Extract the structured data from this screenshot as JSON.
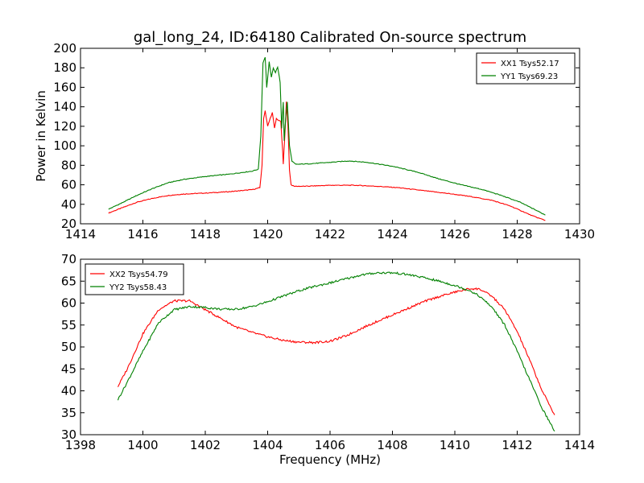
{
  "figure_title": "gal_long_24, ID:64180 Calibrated On-source spectrum",
  "chart_data": [
    {
      "type": "line",
      "title": "gal_long_24, ID:64180 Calibrated On-source spectrum",
      "xlabel": "",
      "ylabel": "Power in Kelvin",
      "xlim": [
        1414,
        1430
      ],
      "ylim": [
        20,
        200
      ],
      "xticks": [
        1414,
        1416,
        1418,
        1420,
        1422,
        1424,
        1426,
        1428,
        1430
      ],
      "yticks": [
        20,
        40,
        60,
        80,
        100,
        120,
        140,
        160,
        180,
        200
      ],
      "grid": false,
      "legend": "top-right",
      "series": [
        {
          "name": "XX1 Tsys52.17",
          "color": "#ff0000",
          "x": [
            1414.9,
            1415.3,
            1415.8,
            1416.3,
            1416.8,
            1417.3,
            1418.0,
            1418.8,
            1419.5,
            1419.75,
            1419.82,
            1419.87,
            1419.92,
            1420.0,
            1420.08,
            1420.15,
            1420.22,
            1420.28,
            1420.35,
            1420.42,
            1420.48,
            1420.5,
            1420.55,
            1420.6,
            1420.65,
            1420.7,
            1420.75,
            1420.85,
            1421.2,
            1422.0,
            1422.8,
            1423.5,
            1424.2,
            1425.0,
            1425.8,
            1426.5,
            1427.2,
            1427.8,
            1428.5,
            1428.9
          ],
          "y": [
            31,
            36,
            42,
            46,
            49,
            50.5,
            51.5,
            53,
            55,
            57,
            80,
            128,
            136,
            120,
            128,
            134,
            118,
            128,
            126,
            125,
            95,
            81,
            110,
            145,
            120,
            75,
            60,
            58.5,
            58.5,
            59.5,
            59.5,
            58.5,
            57,
            54,
            51,
            48,
            44,
            38,
            28,
            23.5
          ]
        },
        {
          "name": "YY1 Tsys69.23",
          "color": "#008000",
          "x": [
            1414.9,
            1415.3,
            1415.8,
            1416.3,
            1416.8,
            1417.3,
            1418.0,
            1418.8,
            1419.5,
            1419.7,
            1419.78,
            1419.85,
            1419.92,
            1419.97,
            1420.05,
            1420.12,
            1420.18,
            1420.25,
            1420.32,
            1420.4,
            1420.45,
            1420.5,
            1420.53,
            1420.58,
            1420.63,
            1420.7,
            1420.78,
            1420.9,
            1421.3,
            1422.0,
            1422.6,
            1423.2,
            1424.0,
            1424.8,
            1425.5,
            1426.2,
            1426.9,
            1427.5,
            1428.1,
            1428.6,
            1428.9
          ],
          "y": [
            35,
            41,
            49,
            56,
            62,
            65.5,
            68.5,
            71,
            74,
            76,
            110,
            185,
            191,
            160,
            186,
            170,
            180,
            175,
            181,
            165,
            118,
            145,
            105,
            130,
            145,
            100,
            84,
            81,
            81.5,
            83,
            84.5,
            83,
            79,
            73,
            66,
            60,
            55,
            49,
            42,
            34,
            29
          ]
        }
      ]
    },
    {
      "type": "line",
      "title": "",
      "xlabel": "Frequency (MHz)",
      "ylabel": "",
      "xlim": [
        1398,
        1414
      ],
      "ylim": [
        30,
        70
      ],
      "xticks": [
        1398,
        1400,
        1402,
        1404,
        1406,
        1408,
        1410,
        1412,
        1414
      ],
      "yticks": [
        30,
        35,
        40,
        45,
        50,
        55,
        60,
        65,
        70
      ],
      "grid": false,
      "legend": "top-left",
      "series": [
        {
          "name": "XX2 Tsys54.79",
          "color": "#ff0000",
          "x": [
            1399.2,
            1399.5,
            1400.0,
            1400.5,
            1401.0,
            1401.5,
            1402.0,
            1402.5,
            1403.0,
            1403.5,
            1404.0,
            1404.5,
            1405.0,
            1405.5,
            1406.0,
            1406.5,
            1407.0,
            1407.5,
            1408.0,
            1408.5,
            1409.0,
            1409.5,
            1410.0,
            1410.5,
            1410.8,
            1411.2,
            1411.6,
            1412.0,
            1412.4,
            1412.8,
            1413.2
          ],
          "y": [
            41,
            45,
            53,
            58.5,
            60.5,
            60.5,
            58.5,
            56.5,
            54.5,
            53.3,
            52.3,
            51.5,
            51.1,
            51.0,
            51.3,
            52.5,
            54.2,
            55.8,
            57.3,
            58.8,
            60.3,
            61.5,
            62.5,
            63.3,
            63.2,
            61.5,
            58.5,
            53.5,
            47,
            40,
            34.5
          ]
        },
        {
          "name": "YY2 Tsys58.43",
          "color": "#008000",
          "x": [
            1399.2,
            1399.5,
            1400.0,
            1400.5,
            1401.0,
            1401.5,
            1402.0,
            1402.5,
            1403.0,
            1403.5,
            1404.0,
            1404.5,
            1405.0,
            1405.5,
            1406.0,
            1406.5,
            1407.0,
            1407.5,
            1408.0,
            1408.5,
            1409.0,
            1409.5,
            1410.0,
            1410.5,
            1410.8,
            1411.2,
            1411.6,
            1412.0,
            1412.4,
            1412.8,
            1413.2
          ],
          "y": [
            38,
            42,
            49,
            55.5,
            58.5,
            59.2,
            59.0,
            58.6,
            58.6,
            59.2,
            60.3,
            61.6,
            62.8,
            63.8,
            64.6,
            65.5,
            66.4,
            66.9,
            66.9,
            66.5,
            65.8,
            65.0,
            64.0,
            62.8,
            61.5,
            59.0,
            55.0,
            49.0,
            42.5,
            36.0,
            30.8
          ]
        }
      ]
    }
  ]
}
